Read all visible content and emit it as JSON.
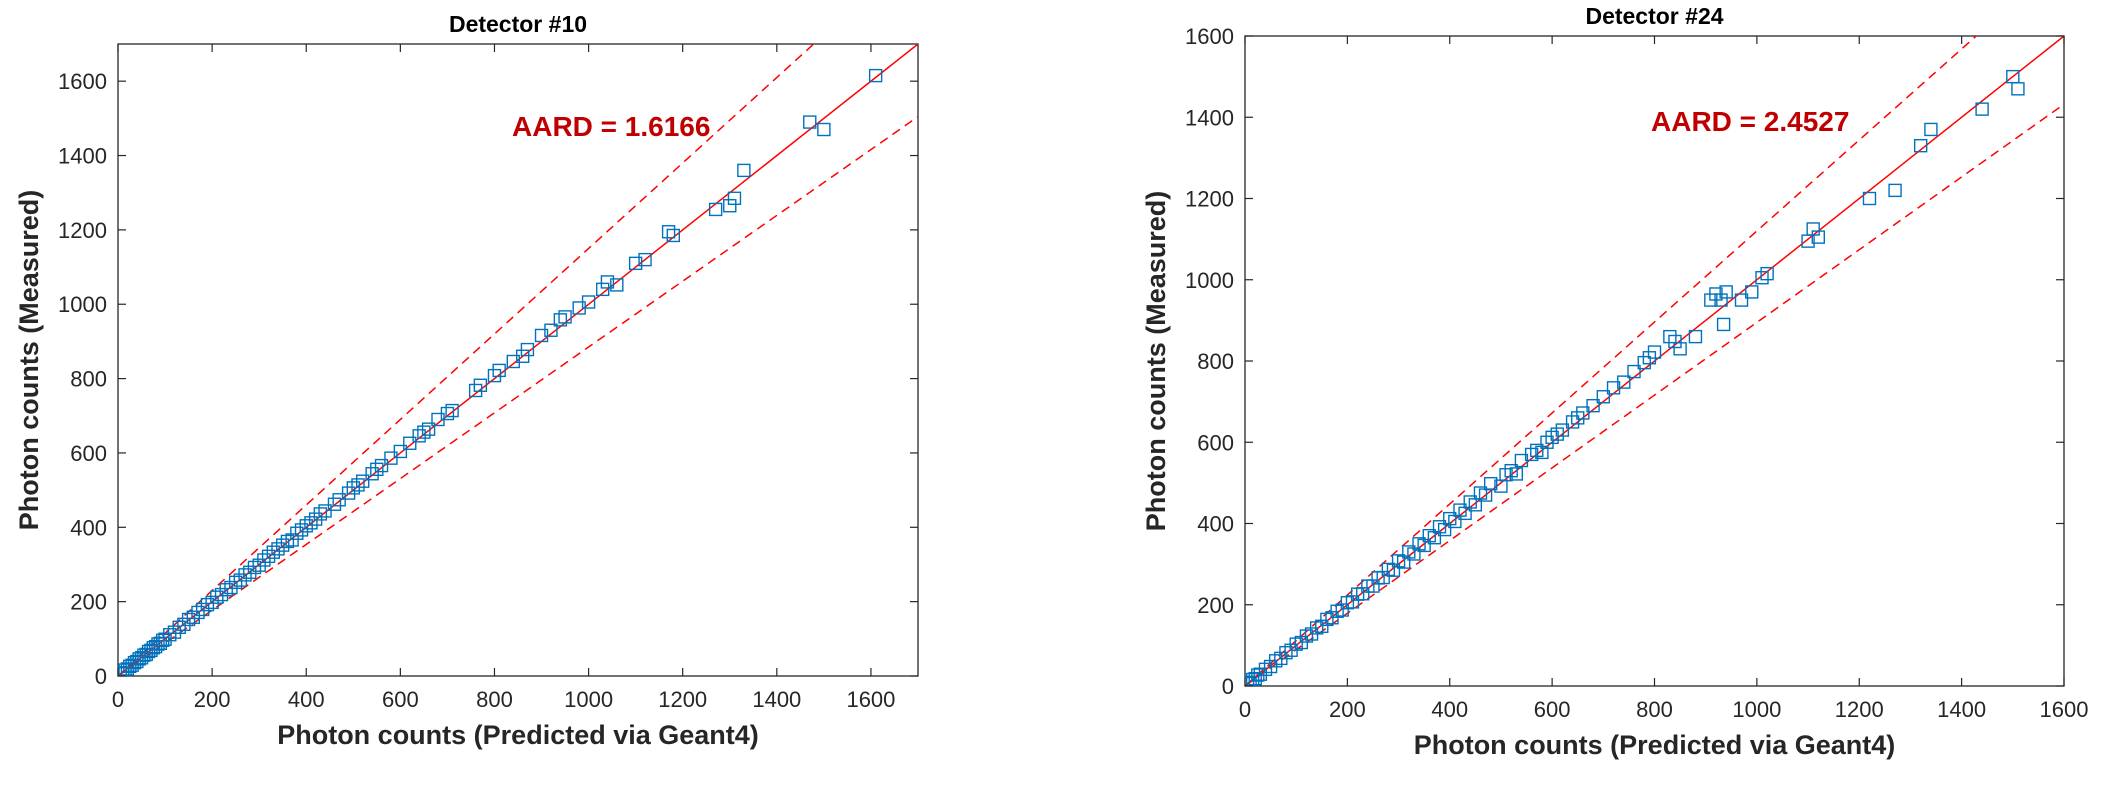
{
  "colors": {
    "marker": "#0072BD",
    "fit_line": "#FF0000",
    "annotation": "#C00000",
    "axis": "#262626"
  },
  "chart_data": [
    {
      "type": "scatter",
      "title": "Detector #10",
      "xlabel": "Photon counts (Predicted via Geant4)",
      "ylabel": "Photon counts (Measured)",
      "xlim": [
        0,
        1700
      ],
      "ylim": [
        0,
        1700
      ],
      "xticks": [
        0,
        200,
        400,
        600,
        800,
        1000,
        1200,
        1400,
        1600
      ],
      "yticks": [
        0,
        200,
        400,
        600,
        800,
        1000,
        1200,
        1400,
        1600
      ],
      "annotation": "AARD = 1.6166",
      "grid": false,
      "marker": "square",
      "reference_lines": [
        {
          "name": "",
          "style": "solid",
          "slope": 1.0
        },
        {
          "name": "",
          "style": "dashed",
          "slope": 1.15
        },
        {
          "name": "",
          "style": "dashed",
          "slope": 0.885
        }
      ],
      "series": [
        {
          "name": "",
          "points": [
            [
              5,
              6
            ],
            [
              10,
              9
            ],
            [
              15,
              16
            ],
            [
              20,
              19
            ],
            [
              25,
              26
            ],
            [
              30,
              29
            ],
            [
              35,
              36
            ],
            [
              40,
              39
            ],
            [
              45,
              46
            ],
            [
              50,
              49
            ],
            [
              55,
              56
            ],
            [
              60,
              58
            ],
            [
              65,
              66
            ],
            [
              70,
              69
            ],
            [
              75,
              76
            ],
            [
              80,
              79
            ],
            [
              85,
              86
            ],
            [
              90,
              88
            ],
            [
              95,
              96
            ],
            [
              100,
              99
            ],
            [
              110,
              111
            ],
            [
              120,
              118
            ],
            [
              130,
              131
            ],
            [
              140,
              139
            ],
            [
              150,
              152
            ],
            [
              160,
              158
            ],
            [
              170,
              171
            ],
            [
              180,
              179
            ],
            [
              190,
              192
            ],
            [
              200,
              198
            ],
            [
              210,
              212
            ],
            [
              220,
              219
            ],
            [
              230,
              232
            ],
            [
              240,
              238
            ],
            [
              250,
              252
            ],
            [
              260,
              258
            ],
            [
              270,
              272
            ],
            [
              280,
              279
            ],
            [
              290,
              292
            ],
            [
              300,
              298
            ],
            [
              310,
              312
            ],
            [
              320,
              322
            ],
            [
              330,
              333
            ],
            [
              340,
              342
            ],
            [
              350,
              352
            ],
            [
              360,
              362
            ],
            [
              370,
              366
            ],
            [
              380,
              384
            ],
            [
              390,
              393
            ],
            [
              400,
              404
            ],
            [
              410,
              412
            ],
            [
              420,
              422
            ],
            [
              430,
              436
            ],
            [
              440,
              444
            ],
            [
              460,
              462
            ],
            [
              470,
              474
            ],
            [
              490,
              492
            ],
            [
              500,
              506
            ],
            [
              510,
              514
            ],
            [
              520,
              524
            ],
            [
              540,
              544
            ],
            [
              550,
              556
            ],
            [
              560,
              566
            ],
            [
              580,
              586
            ],
            [
              600,
              604
            ],
            [
              620,
              626
            ],
            [
              640,
              646
            ],
            [
              650,
              656
            ],
            [
              660,
              664
            ],
            [
              680,
              690
            ],
            [
              700,
              706
            ],
            [
              710,
              714
            ],
            [
              760,
              768
            ],
            [
              770,
              782
            ],
            [
              800,
              808
            ],
            [
              810,
              822
            ],
            [
              840,
              846
            ],
            [
              860,
              860
            ],
            [
              870,
              878
            ],
            [
              900,
              916
            ],
            [
              920,
              930
            ],
            [
              940,
              958
            ],
            [
              950,
              966
            ],
            [
              980,
              990
            ],
            [
              1000,
              1006
            ],
            [
              1030,
              1040
            ],
            [
              1040,
              1060
            ],
            [
              1060,
              1052
            ],
            [
              1100,
              1110
            ],
            [
              1120,
              1120
            ],
            [
              1170,
              1195
            ],
            [
              1180,
              1185
            ],
            [
              1270,
              1255
            ],
            [
              1300,
              1265
            ],
            [
              1310,
              1285
            ],
            [
              1330,
              1360
            ],
            [
              1470,
              1490
            ],
            [
              1500,
              1470
            ],
            [
              1610,
              1615
            ]
          ]
        }
      ]
    },
    {
      "type": "scatter",
      "title": "Detector #24",
      "xlabel": "Photon counts (Predicted via Geant4)",
      "ylabel": "Photon counts (Measured)",
      "xlim": [
        0,
        1600
      ],
      "ylim": [
        0,
        1600
      ],
      "xticks": [
        0,
        200,
        400,
        600,
        800,
        1000,
        1200,
        1400,
        1600
      ],
      "yticks": [
        0,
        200,
        400,
        600,
        800,
        1000,
        1200,
        1400,
        1600
      ],
      "annotation": "AARD = 2.4527",
      "grid": false,
      "marker": "square",
      "reference_lines": [
        {
          "name": "",
          "style": "solid",
          "slope": 1.0
        },
        {
          "name": "",
          "style": "dashed",
          "slope": 1.12
        },
        {
          "name": "",
          "style": "dashed",
          "slope": 0.895
        }
      ],
      "series": [
        {
          "name": "",
          "points": [
            [
              5,
              6
            ],
            [
              10,
              9
            ],
            [
              15,
              16
            ],
            [
              20,
              18
            ],
            [
              25,
              27
            ],
            [
              30,
              29
            ],
            [
              40,
              41
            ],
            [
              50,
              48
            ],
            [
              60,
              62
            ],
            [
              70,
              68
            ],
            [
              80,
              82
            ],
            [
              90,
              88
            ],
            [
              100,
              103
            ],
            [
              110,
              107
            ],
            [
              120,
              123
            ],
            [
              130,
              128
            ],
            [
              140,
              143
            ],
            [
              150,
              147
            ],
            [
              160,
              164
            ],
            [
              170,
              168
            ],
            [
              180,
              184
            ],
            [
              190,
              187
            ],
            [
              200,
              205
            ],
            [
              210,
              207
            ],
            [
              220,
              226
            ],
            [
              230,
              227
            ],
            [
              240,
              246
            ],
            [
              250,
              246
            ],
            [
              260,
              266
            ],
            [
              270,
              267
            ],
            [
              280,
              287
            ],
            [
              290,
              285
            ],
            [
              300,
              308
            ],
            [
              310,
              305
            ],
            [
              320,
              330
            ],
            [
              330,
              325
            ],
            [
              340,
              350
            ],
            [
              350,
              346
            ],
            [
              360,
              370
            ],
            [
              370,
              365
            ],
            [
              380,
              392
            ],
            [
              390,
              385
            ],
            [
              400,
              412
            ],
            [
              410,
              405
            ],
            [
              420,
              433
            ],
            [
              430,
              425
            ],
            [
              440,
              453
            ],
            [
              450,
              446
            ],
            [
              460,
              475
            ],
            [
              470,
              470
            ],
            [
              480,
              498
            ],
            [
              500,
              492
            ],
            [
              510,
              520
            ],
            [
              520,
              530
            ],
            [
              530,
              522
            ],
            [
              540,
              555
            ],
            [
              560,
              570
            ],
            [
              570,
              580
            ],
            [
              580,
              575
            ],
            [
              590,
              600
            ],
            [
              600,
              612
            ],
            [
              610,
              620
            ],
            [
              620,
              630
            ],
            [
              640,
              650
            ],
            [
              650,
              660
            ],
            [
              660,
              672
            ],
            [
              680,
              690
            ],
            [
              700,
              712
            ],
            [
              720,
              734
            ],
            [
              740,
              748
            ],
            [
              760,
              774
            ],
            [
              780,
              796
            ],
            [
              790,
              808
            ],
            [
              800,
              822
            ],
            [
              830,
              860
            ],
            [
              840,
              848
            ],
            [
              850,
              830
            ],
            [
              880,
              860
            ],
            [
              910,
              950
            ],
            [
              920,
              965
            ],
            [
              930,
              950
            ],
            [
              940,
              970
            ],
            [
              935,
              890
            ],
            [
              970,
              950
            ],
            [
              990,
              970
            ],
            [
              1010,
              1005
            ],
            [
              1020,
              1015
            ],
            [
              1100,
              1095
            ],
            [
              1110,
              1125
            ],
            [
              1120,
              1105
            ],
            [
              1220,
              1200
            ],
            [
              1270,
              1220
            ],
            [
              1320,
              1330
            ],
            [
              1340,
              1370
            ],
            [
              1440,
              1420
            ],
            [
              1500,
              1500
            ],
            [
              1510,
              1470
            ]
          ]
        }
      ]
    }
  ]
}
